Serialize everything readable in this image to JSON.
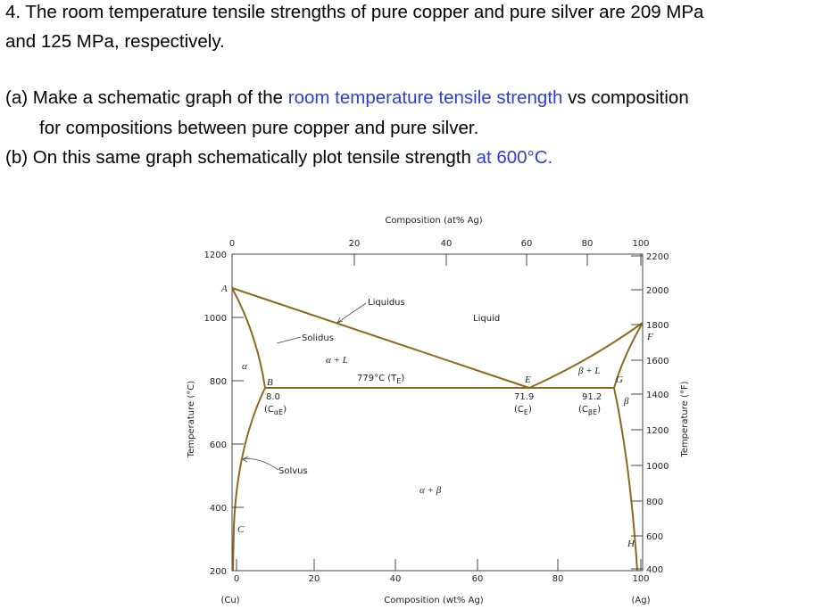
{
  "question": {
    "lines": [
      "4. The room temperature tensile strengths of pure copper and pure silver are 209 MPa",
      "and 125 MPa, respectively."
    ]
  },
  "part_a": {
    "label": "(a)",
    "text_1": "Make a schematic graph of the ",
    "highlight": "room temperature tensile strength",
    "text_2": " vs composition",
    "line_2": "for compositions between pure copper and pure silver."
  },
  "part_b": {
    "label": "(b)",
    "text_1": "On this same graph schematically plot tensile strength ",
    "highlight": "at 600°C."
  },
  "figure": {
    "top_axis_title": "Composition (at% Ag)",
    "bottom_axis_title": "Composition (wt% Ag)",
    "left_axis_title": "Temperature (°C)",
    "right_axis_title": "Temperature (°F)",
    "top_ticks": [
      0,
      20,
      40,
      60,
      80,
      100
    ],
    "bottom_ticks": [
      0,
      20,
      40,
      60,
      80,
      100
    ],
    "left_ticks": [
      1200,
      1000,
      800,
      600,
      400,
      200
    ],
    "right_ticks": [
      2200,
      2000,
      1800,
      1600,
      1400,
      1200,
      1000,
      800,
      600,
      400
    ],
    "end_labels": [
      "(Cu)",
      "(Ag)"
    ],
    "points": [
      "A",
      "B",
      "C",
      "E",
      "F",
      "G",
      "H"
    ],
    "phases": [
      "α",
      "β",
      "α + L",
      "β + L",
      "α + β",
      "Liquid"
    ],
    "curves": [
      "Liquidus",
      "Solidus",
      "Solvus"
    ],
    "eutectic": {
      "text": "779°C (T",
      "sub": "E",
      "end": ")"
    },
    "compositions": [
      {
        "value": "8.0",
        "open": "(C",
        "sub": "αE",
        "end": ")"
      },
      {
        "value": "71.9",
        "open": "(C",
        "sub": "E",
        "end": ")"
      },
      {
        "value": "91.2",
        "open": "(C",
        "sub": "βE",
        "end": ")"
      }
    ]
  }
}
